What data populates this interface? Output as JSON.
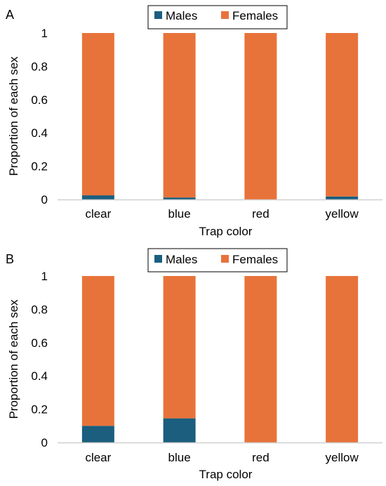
{
  "colors": {
    "males": "#1b5e7e",
    "females": "#e8733a",
    "axis": "#d0d0d0"
  },
  "chart_data": [
    {
      "type": "bar",
      "stacked": true,
      "panel_label": "A",
      "categories": [
        "clear",
        "blue",
        "red",
        "yellow"
      ],
      "series": [
        {
          "name": "Males",
          "values": [
            0.025,
            0.012,
            0.0,
            0.018
          ]
        },
        {
          "name": "Females",
          "values": [
            0.975,
            0.988,
            1.0,
            0.982
          ]
        }
      ],
      "xlabel": "Trap color",
      "ylabel": "Proportion of each sex",
      "ylim": [
        0,
        1
      ],
      "yticks": [
        "0",
        "0.2",
        "0.4",
        "0.6",
        "0.8",
        "1"
      ],
      "grid": false,
      "legend": "top-center"
    },
    {
      "type": "bar",
      "stacked": true,
      "panel_label": "B",
      "categories": [
        "clear",
        "blue",
        "red",
        "yellow"
      ],
      "series": [
        {
          "name": "Males",
          "values": [
            0.1,
            0.145,
            0.0,
            0.0
          ]
        },
        {
          "name": "Females",
          "values": [
            0.9,
            0.855,
            1.0,
            1.0
          ]
        }
      ],
      "xlabel": "Trap color",
      "ylabel": "Proportion of each sex",
      "ylim": [
        0,
        1
      ],
      "yticks": [
        "0",
        "0.2",
        "0.4",
        "0.6",
        "0.8",
        "1"
      ],
      "grid": false,
      "legend": "top-center"
    }
  ]
}
